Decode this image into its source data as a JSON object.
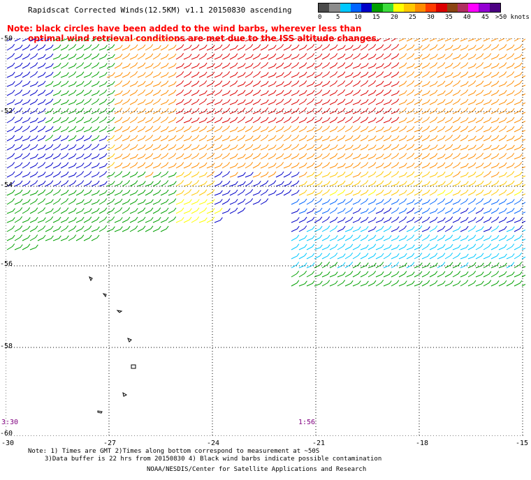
{
  "title": "Rapidscat Corrected Winds(12.5KM) v1.1 20150830 ascending",
  "note": {
    "line1": "Note: black circles have been added to the wind barbs, wherever less than",
    "line2": "optimal wind retrieval conditions are met due to the ISS altitude changes."
  },
  "legend": {
    "labels": [
      "0",
      "5",
      "10",
      "15",
      "20",
      "25",
      "30",
      "35",
      "40",
      "45",
      ">50 knots"
    ],
    "colors": [
      "#4a4a4a",
      "#8c8c8c",
      "#00c8ff",
      "#0064ff",
      "#0000c8",
      "#00a000",
      "#3cdc3c",
      "#ffff00",
      "#ffc800",
      "#ff8c00",
      "#ff3c00",
      "#dc0000",
      "#8b4513",
      "#b03060",
      "#ff00ff",
      "#9400d3",
      "#4b0082"
    ]
  },
  "axes": {
    "lat_labels": [
      "-50",
      "-52",
      "-54",
      "-56",
      "-58",
      "-60"
    ],
    "lon_labels": [
      "-30",
      "-27",
      "-24",
      "-21",
      "-18",
      "-15"
    ]
  },
  "times": {
    "left": "3:30",
    "right": "1:56"
  },
  "footnotes": {
    "line1": "Note: 1) Times are GMT 2)Times along bottom correspond to measurement at ~50S",
    "line2": "3)Data buffer is 22 hrs from 20150830 4) Black wind barbs indicate possible contamination"
  },
  "credit": "NOAA/NESDIS/Center for Satellite Applications and Research"
}
